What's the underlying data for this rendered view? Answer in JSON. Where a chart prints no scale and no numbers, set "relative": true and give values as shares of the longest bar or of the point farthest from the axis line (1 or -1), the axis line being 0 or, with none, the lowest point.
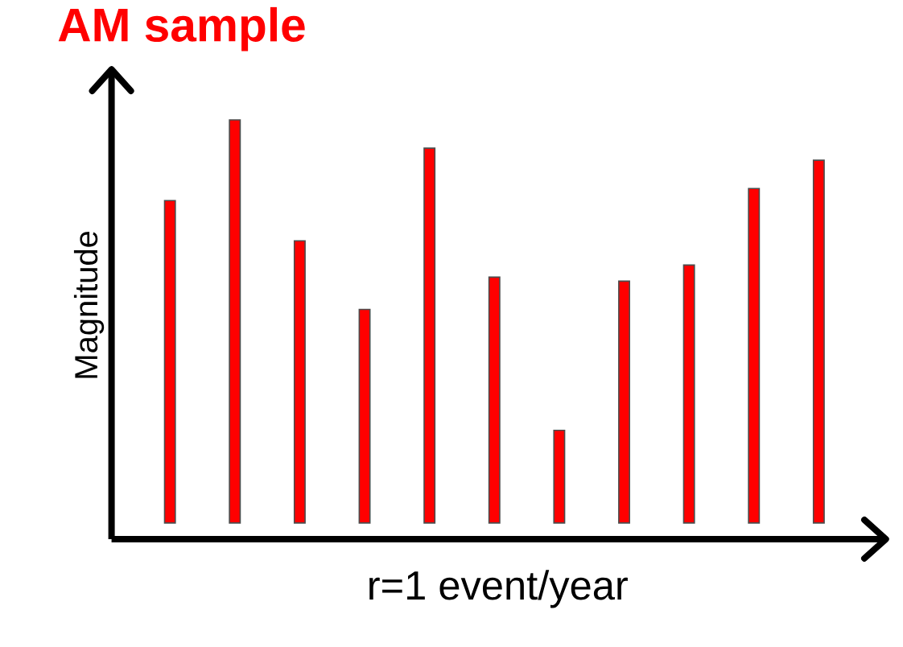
{
  "chart_data": {
    "type": "bar",
    "title": "AM sample",
    "ylabel": "Magnitude",
    "xlabel": "r=1 event/year",
    "relative": true,
    "categories": [
      null,
      null,
      null,
      null,
      null,
      null,
      null,
      null,
      null,
      null,
      null
    ],
    "values": [
      0.8,
      1,
      0.7,
      0.53,
      0.93,
      0.61,
      0.23,
      0.6,
      0.64,
      0.83,
      0.9
    ],
    "color": "#ff0000"
  }
}
